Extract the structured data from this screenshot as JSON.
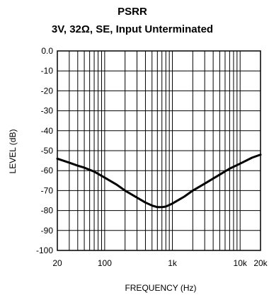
{
  "chart_data": {
    "type": "line",
    "title": "PSRR",
    "subtitle": "3V, 32Ω, SE, Input Unterminated",
    "xlabel": "FREQUENCY (Hz)",
    "ylabel": "LEVEL (dB)",
    "x_scale": "log",
    "xlim": [
      20,
      20000
    ],
    "ylim": [
      -100,
      0
    ],
    "grid": true,
    "x_ticks": [
      {
        "value": 20,
        "label": "20"
      },
      {
        "value": 100,
        "label": "100"
      },
      {
        "value": 1000,
        "label": "1k"
      },
      {
        "value": 10000,
        "label": "10k"
      },
      {
        "value": 20000,
        "label": "20k"
      }
    ],
    "y_ticks": [
      {
        "value": 0,
        "label": "0.0"
      },
      {
        "value": -10,
        "label": "-10"
      },
      {
        "value": -20,
        "label": "-20"
      },
      {
        "value": -30,
        "label": "-30"
      },
      {
        "value": -40,
        "label": "-40"
      },
      {
        "value": -50,
        "label": "-50"
      },
      {
        "value": -60,
        "label": "-60"
      },
      {
        "value": -70,
        "label": "-70"
      },
      {
        "value": -80,
        "label": "-80"
      },
      {
        "value": -90,
        "label": "-90"
      },
      {
        "value": -100,
        "label": "-100"
      }
    ],
    "x_grid": [
      20,
      30,
      40,
      50,
      60,
      70,
      80,
      90,
      100,
      200,
      300,
      400,
      500,
      600,
      700,
      800,
      900,
      1000,
      2000,
      3000,
      4000,
      5000,
      6000,
      7000,
      8000,
      9000,
      10000,
      20000
    ],
    "series": [
      {
        "color": "#000000",
        "x": [
          20,
          30,
          40,
          50,
          70,
          100,
          150,
          200,
          300,
          400,
          500,
          600,
          700,
          800,
          1000,
          1500,
          2000,
          3000,
          5000,
          7000,
          10000,
          15000,
          20000
        ],
        "y": [
          -54,
          -56,
          -57.5,
          -58.5,
          -60.5,
          -63.5,
          -67,
          -70,
          -73.5,
          -76,
          -77.5,
          -78.3,
          -78.3,
          -78,
          -76.5,
          -73,
          -70,
          -66.5,
          -62,
          -59,
          -56.5,
          -53.5,
          -52
        ]
      }
    ]
  }
}
